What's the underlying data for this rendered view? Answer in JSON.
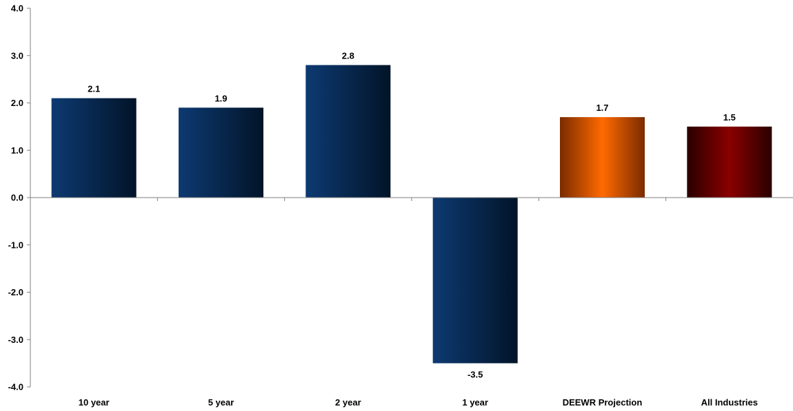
{
  "chart_data": {
    "type": "bar",
    "title": "",
    "xlabel": "",
    "ylabel": "",
    "categories": [
      "10 year",
      "5 year",
      "2 year",
      "1 year",
      "DEEWR Projection",
      "All Industries"
    ],
    "values": [
      2.1,
      1.9,
      2.8,
      -3.5,
      1.7,
      1.5
    ],
    "value_labels": [
      "2.1",
      "1.9",
      "2.8",
      "-3.5",
      "1.7",
      "1.5"
    ],
    "ylim": [
      -4.0,
      4.0
    ],
    "yticks": [
      4.0,
      3.0,
      2.0,
      1.0,
      0.0,
      -1.0,
      -2.0,
      -3.0,
      -4.0
    ],
    "ytick_labels": [
      "4.0",
      "3.0",
      "2.0",
      "1.0",
      "0.0",
      "-1.0",
      "-2.0",
      "-3.0",
      "-4.0"
    ],
    "grid": false,
    "legend": "none",
    "bar_colors": [
      "navy",
      "navy",
      "navy",
      "navy",
      "orange",
      "maroon"
    ],
    "colors": {
      "navy_light": "#0d3a72",
      "navy_dark": "#021428",
      "orange_light": "#ff6a00",
      "orange_dark": "#7a2b00",
      "maroon_light": "#8a0000",
      "maroon_dark": "#2a0000",
      "axis": "#7f7f7f"
    }
  }
}
